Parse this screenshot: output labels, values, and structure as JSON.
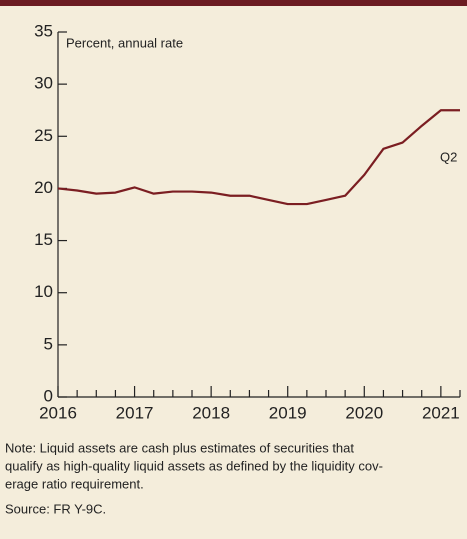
{
  "chart_data": {
    "type": "line",
    "axis_label": "Percent, annual rate",
    "annotation": "Q2",
    "x": [
      2016,
      2016.25,
      2016.5,
      2016.75,
      2017,
      2017.25,
      2017.5,
      2017.75,
      2018,
      2018.25,
      2018.5,
      2018.75,
      2019,
      2019.25,
      2019.5,
      2019.75,
      2020,
      2020.25,
      2020.5,
      2020.75,
      2021,
      2021.25
    ],
    "series": [
      {
        "color": "#7b1e22",
        "values": [
          20.0,
          19.8,
          19.5,
          19.6,
          20.1,
          19.5,
          19.7,
          19.7,
          19.6,
          19.3,
          19.3,
          18.9,
          18.5,
          18.5,
          18.9,
          19.3,
          21.3,
          23.8,
          24.4,
          26.0,
          27.5,
          27.5
        ]
      }
    ],
    "xlim": [
      2016,
      2021.25
    ],
    "xticks": [
      2016,
      2017,
      2018,
      2019,
      2020,
      2021
    ],
    "ylim": [
      0,
      35
    ],
    "yticks": [
      0,
      5,
      10,
      15,
      20,
      25,
      30,
      35
    ],
    "note": [
      "Note: Liquid assets are cash plus estimates of securities that",
      "qualify as high-quality liquid assets as defined by the liquidity cov-",
      "erage ratio requirement."
    ],
    "source": "Source: FR Y-9C."
  }
}
